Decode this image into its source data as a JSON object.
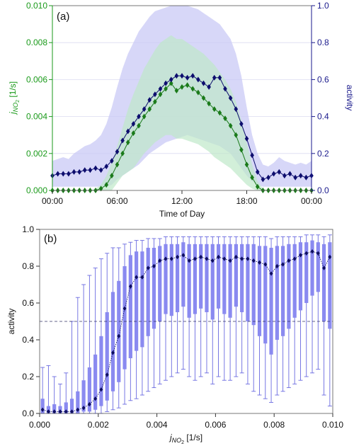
{
  "chart_data": [
    {
      "type": "line",
      "panel_label": "(a)",
      "xlabel": "Time of Day",
      "ylabel_left_main": "j",
      "ylabel_left_sub": "NO",
      "ylabel_left_subsub": "2",
      "ylabel_left_unit": " [1/s]",
      "ylabel_right": "activity",
      "x_ticks": [
        "00:00",
        "06:00",
        "12:00",
        "18:00",
        "00:00"
      ],
      "x_tick_hours": [
        0,
        6,
        12,
        18,
        24
      ],
      "xlim": [
        0,
        24
      ],
      "ylim_left": [
        0,
        0.01
      ],
      "ylim_right": [
        0,
        1.0
      ],
      "y_ticks_left": [
        "0.000",
        "0.002",
        "0.004",
        "0.006",
        "0.008",
        "0.010"
      ],
      "y_tick_left_values": [
        0,
        0.002,
        0.004,
        0.006,
        0.008,
        0.01
      ],
      "y_ticks_right": [
        "0.0",
        "0.2",
        "0.4",
        "0.6",
        "0.8",
        "1.0"
      ],
      "y_tick_right_values": [
        0,
        0.2,
        0.4,
        0.6,
        0.8,
        1.0
      ],
      "grid": true,
      "colors": {
        "jno2": "#1a7a1a",
        "activity": "#0d0d6e",
        "band_j": "#bfe8c9",
        "band_act": "#c9c9f5",
        "axis_left": "#1a9a1a",
        "axis_right": "#1a1a8c"
      },
      "x": [
        0.0,
        0.5,
        1.0,
        1.5,
        2.0,
        2.5,
        3.0,
        3.5,
        4.0,
        4.5,
        5.0,
        5.5,
        6.0,
        6.5,
        7.0,
        7.5,
        8.0,
        8.5,
        9.0,
        9.5,
        10.0,
        10.5,
        11.0,
        11.5,
        12.0,
        12.5,
        13.0,
        13.5,
        14.0,
        14.5,
        15.0,
        15.5,
        16.0,
        16.5,
        17.0,
        17.5,
        18.0,
        18.5,
        19.0,
        19.5,
        20.0,
        20.5,
        21.0,
        21.5,
        22.0,
        22.5,
        23.0,
        23.5,
        24.0
      ],
      "series": [
        {
          "axis": "left",
          "values": [
            0,
            0,
            0,
            0,
            0,
            0,
            0,
            0,
            0,
            0.0001,
            0.0003,
            0.0008,
            0.0014,
            0.002,
            0.0026,
            0.0031,
            0.0035,
            0.004,
            0.0044,
            0.0048,
            0.0052,
            0.0055,
            0.0058,
            0.0054,
            0.0056,
            0.0057,
            0.0055,
            0.0053,
            0.005,
            0.0047,
            0.0044,
            0.0042,
            0.0039,
            0.0035,
            0.003,
            0.0022,
            0.0014,
            0.0007,
            0.0002,
            0,
            0,
            0,
            0,
            0,
            0,
            0,
            0,
            0,
            0
          ],
          "band_lower": [
            0,
            0,
            0,
            0,
            0,
            0,
            0,
            0,
            0,
            0,
            0,
            0,
            0.0004,
            0.0008,
            0.001,
            0.0012,
            0.0016,
            0.002,
            0.0023,
            0.0026,
            0.0028,
            0.003,
            0.003,
            0.0028,
            0.0028,
            0.0027,
            0.0026,
            0.0025,
            0.0023,
            0.0021,
            0.0018,
            0.0016,
            0.0014,
            0.0012,
            0.0009,
            0.0006,
            0.0003,
            0.0001,
            0,
            0,
            0,
            0,
            0,
            0,
            0,
            0,
            0,
            0,
            0
          ],
          "band_upper": [
            0,
            0,
            0,
            0,
            0,
            0,
            0,
            0,
            0.0001,
            0.0003,
            0.0008,
            0.0015,
            0.0024,
            0.0034,
            0.0044,
            0.0052,
            0.0059,
            0.0066,
            0.0071,
            0.0076,
            0.008,
            0.0082,
            0.0084,
            0.0082,
            0.0082,
            0.008,
            0.0078,
            0.0076,
            0.0074,
            0.0071,
            0.0068,
            0.0064,
            0.006,
            0.0055,
            0.0048,
            0.0038,
            0.0026,
            0.0014,
            0.0005,
            0.0001,
            0,
            0,
            0,
            0,
            0,
            0,
            0,
            0,
            0
          ]
        },
        {
          "axis": "right",
          "values": [
            0.08,
            0.09,
            0.09,
            0.09,
            0.1,
            0.1,
            0.11,
            0.11,
            0.12,
            0.11,
            0.13,
            0.16,
            0.21,
            0.27,
            0.32,
            0.36,
            0.4,
            0.44,
            0.49,
            0.52,
            0.55,
            0.58,
            0.6,
            0.62,
            0.62,
            0.61,
            0.62,
            0.6,
            0.58,
            0.56,
            0.61,
            0.61,
            0.55,
            0.5,
            0.44,
            0.36,
            0.28,
            0.19,
            0.1,
            0.06,
            0.07,
            0.09,
            0.1,
            0.08,
            0.09,
            0.07,
            0.08,
            0.07,
            0.08
          ],
          "band_lower": [
            0.02,
            0.02,
            0.02,
            0.02,
            0.02,
            0.02,
            0.02,
            0.02,
            0.02,
            0.02,
            0.02,
            0.03,
            0.06,
            0.08,
            0.1,
            0.12,
            0.14,
            0.17,
            0.2,
            0.22,
            0.24,
            0.26,
            0.27,
            0.28,
            0.29,
            0.3,
            0.29,
            0.28,
            0.27,
            0.26,
            0.25,
            0.24,
            0.22,
            0.2,
            0.16,
            0.12,
            0.08,
            0.05,
            0.03,
            0.02,
            0.02,
            0.02,
            0.02,
            0.02,
            0.02,
            0.02,
            0.02,
            0.02,
            0.02
          ],
          "band_upper": [
            0.16,
            0.17,
            0.18,
            0.17,
            0.2,
            0.22,
            0.24,
            0.25,
            0.27,
            0.3,
            0.36,
            0.45,
            0.56,
            0.66,
            0.74,
            0.8,
            0.86,
            0.9,
            0.94,
            0.97,
            0.98,
            0.99,
            1.0,
            1.0,
            1.0,
            1.0,
            0.99,
            0.98,
            0.96,
            0.94,
            0.92,
            0.9,
            0.86,
            0.82,
            0.74,
            0.62,
            0.45,
            0.3,
            0.2,
            0.14,
            0.13,
            0.15,
            0.18,
            0.16,
            0.15,
            0.14,
            0.15,
            0.14,
            0.16
          ]
        }
      ]
    },
    {
      "type": "box",
      "panel_label": "(b)",
      "xlabel_main": "j",
      "xlabel_sub": "NO",
      "xlabel_subsub": "2",
      "xlabel_unit": " [1/s]",
      "ylabel": "activity",
      "xlim": [
        0,
        0.01
      ],
      "ylim": [
        0,
        1.0
      ],
      "x_ticks": [
        "0.000",
        "0.002",
        "0.004",
        "0.006",
        "0.008",
        "0.010"
      ],
      "x_tick_values": [
        0,
        0.002,
        0.004,
        0.006,
        0.008,
        0.01
      ],
      "y_ticks": [
        "0.0",
        "0.2",
        "0.4",
        "0.6",
        "0.8",
        "1.0"
      ],
      "y_tick_values": [
        0,
        0.2,
        0.4,
        0.6,
        0.8,
        1.0
      ],
      "reference_line": 0.5,
      "colors": {
        "box": "#8a8af0",
        "whisker": "#6a6ae0",
        "median": "#0d0d5e",
        "reference": "#333366"
      },
      "x": [
        0.0001,
        0.0003,
        0.0005,
        0.0007,
        0.0009,
        0.0011,
        0.0013,
        0.0015,
        0.0017,
        0.0019,
        0.0021,
        0.0023,
        0.0025,
        0.0027,
        0.0029,
        0.0031,
        0.0033,
        0.0035,
        0.0037,
        0.0039,
        0.0041,
        0.0043,
        0.0045,
        0.0047,
        0.0049,
        0.0051,
        0.0053,
        0.0055,
        0.0057,
        0.0059,
        0.0061,
        0.0063,
        0.0065,
        0.0067,
        0.0069,
        0.0071,
        0.0073,
        0.0075,
        0.0077,
        0.0079,
        0.0081,
        0.0083,
        0.0085,
        0.0087,
        0.0089,
        0.0091,
        0.0093,
        0.0095,
        0.0097,
        0.0099
      ],
      "median": [
        0.02,
        0.01,
        0.01,
        0.01,
        0.01,
        0.01,
        0.02,
        0.03,
        0.05,
        0.08,
        0.13,
        0.21,
        0.33,
        0.42,
        0.57,
        0.69,
        0.74,
        0.74,
        0.79,
        0.8,
        0.83,
        0.84,
        0.84,
        0.85,
        0.86,
        0.83,
        0.84,
        0.85,
        0.84,
        0.83,
        0.85,
        0.84,
        0.83,
        0.85,
        0.84,
        0.84,
        0.83,
        0.82,
        0.81,
        0.76,
        0.8,
        0.81,
        0.83,
        0.84,
        0.86,
        0.87,
        0.88,
        0.87,
        0.79,
        0.85
      ],
      "q1": [
        0.0,
        0.0,
        0.0,
        0.0,
        0.0,
        0.0,
        0.0,
        0.01,
        0.01,
        0.02,
        0.04,
        0.07,
        0.12,
        0.17,
        0.24,
        0.3,
        0.34,
        0.36,
        0.42,
        0.46,
        0.5,
        0.54,
        0.53,
        0.55,
        0.58,
        0.52,
        0.54,
        0.57,
        0.55,
        0.51,
        0.57,
        0.54,
        0.52,
        0.58,
        0.55,
        0.5,
        0.48,
        0.42,
        0.38,
        0.32,
        0.4,
        0.42,
        0.46,
        0.52,
        0.56,
        0.6,
        0.64,
        0.66,
        0.5,
        0.46
      ],
      "q3": [
        0.08,
        0.04,
        0.05,
        0.04,
        0.06,
        0.08,
        0.12,
        0.18,
        0.25,
        0.32,
        0.42,
        0.55,
        0.66,
        0.72,
        0.8,
        0.86,
        0.88,
        0.88,
        0.9,
        0.9,
        0.91,
        0.92,
        0.92,
        0.92,
        0.93,
        0.92,
        0.92,
        0.92,
        0.92,
        0.92,
        0.92,
        0.92,
        0.92,
        0.92,
        0.92,
        0.92,
        0.92,
        0.91,
        0.91,
        0.9,
        0.91,
        0.91,
        0.92,
        0.92,
        0.93,
        0.93,
        0.94,
        0.93,
        0.92,
        0.93
      ],
      "whisker_low": [
        0.0,
        0.0,
        0.0,
        0.0,
        0.0,
        0.0,
        0.0,
        0.0,
        0.0,
        0.0,
        0.0,
        0.01,
        0.02,
        0.03,
        0.05,
        0.07,
        0.08,
        0.1,
        0.12,
        0.14,
        0.16,
        0.18,
        0.2,
        0.22,
        0.24,
        0.2,
        0.18,
        0.2,
        0.22,
        0.16,
        0.2,
        0.18,
        0.18,
        0.2,
        0.22,
        0.16,
        0.12,
        0.1,
        0.08,
        0.06,
        0.1,
        0.12,
        0.14,
        0.16,
        0.18,
        0.2,
        0.22,
        0.24,
        0.1,
        0.04
      ],
      "whisker_high": [
        0.25,
        0.26,
        0.2,
        0.16,
        0.22,
        0.5,
        0.63,
        0.7,
        0.75,
        0.79,
        0.84,
        0.87,
        0.9,
        0.9,
        0.92,
        0.93,
        0.94,
        0.94,
        0.95,
        0.95,
        0.95,
        0.96,
        0.96,
        0.96,
        0.96,
        0.96,
        0.96,
        0.96,
        0.96,
        0.96,
        0.96,
        0.96,
        0.96,
        0.96,
        0.96,
        0.96,
        0.96,
        0.96,
        0.96,
        0.95,
        0.96,
        0.96,
        0.96,
        0.96,
        0.96,
        0.97,
        0.97,
        0.97,
        0.96,
        0.97
      ]
    }
  ]
}
